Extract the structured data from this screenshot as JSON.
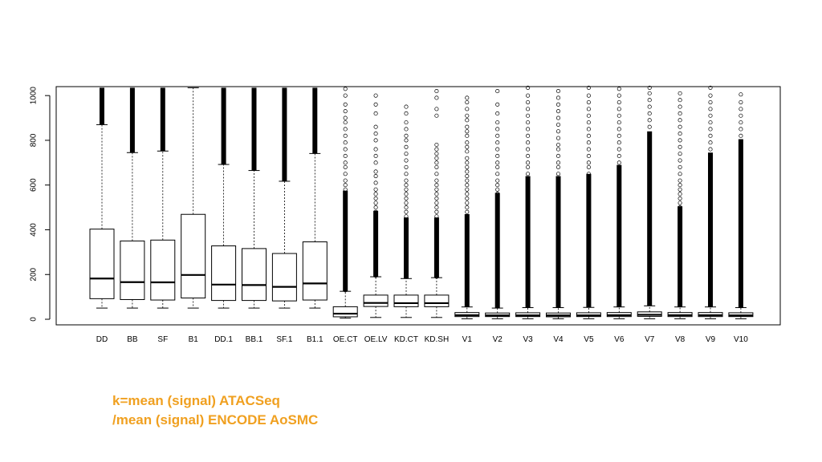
{
  "chart_data": {
    "type": "boxplot",
    "title": "",
    "xlabel": "",
    "ylabel": "",
    "ylim": [
      -25,
      1040
    ],
    "yticks": [
      0,
      200,
      400,
      600,
      800,
      1000
    ],
    "grid": false,
    "legend": "none",
    "colors": {
      "box_fill": "#ffffff",
      "stroke": "#000000"
    },
    "categories": [
      "DD",
      "BB",
      "SF",
      "B1",
      "DD.1",
      "BB.1",
      "SF.1",
      "B1.1",
      "OE.CT",
      "OE.LV",
      "KD.CT",
      "KD.SH",
      "V1",
      "V2",
      "V3",
      "V4",
      "V5",
      "V6",
      "V7",
      "V8",
      "V9",
      "V10"
    ],
    "boxes": [
      {
        "min": 50,
        "q1": 92,
        "median": 182,
        "q3": 403,
        "max": 870,
        "outliers_from": 870
      },
      {
        "min": 50,
        "q1": 88,
        "median": 166,
        "q3": 350,
        "max": 745,
        "outliers_from": 745
      },
      {
        "min": 50,
        "q1": 86,
        "median": 165,
        "q3": 354,
        "max": 752,
        "outliers_from": 752
      },
      {
        "min": 50,
        "q1": 95,
        "median": 198,
        "q3": 469,
        "max": 1035,
        "outliers_from": 1035
      },
      {
        "min": 50,
        "q1": 84,
        "median": 155,
        "q3": 328,
        "max": 692,
        "outliers_from": 692
      },
      {
        "min": 50,
        "q1": 84,
        "median": 153,
        "q3": 316,
        "max": 665,
        "outliers_from": 665
      },
      {
        "min": 50,
        "q1": 82,
        "median": 145,
        "q3": 294,
        "max": 617,
        "outliers_from": 617
      },
      {
        "min": 50,
        "q1": 86,
        "median": 160,
        "q3": 346,
        "max": 741,
        "outliers_from": 741
      },
      {
        "min": 5,
        "q1": 11,
        "median": 25,
        "q3": 56,
        "max": 125,
        "outliers_from": 125
      },
      {
        "min": 8,
        "q1": 57,
        "median": 73,
        "q3": 108,
        "max": 190,
        "outliers_from": 190
      },
      {
        "min": 8,
        "q1": 56,
        "median": 72,
        "q3": 108,
        "max": 182,
        "outliers_from": 182
      },
      {
        "min": 8,
        "q1": 56,
        "median": 72,
        "q3": 108,
        "max": 186,
        "outliers_from": 186
      },
      {
        "min": 2,
        "q1": 12,
        "median": 18,
        "q3": 30,
        "max": 55,
        "outliers_from": 55
      },
      {
        "min": 2,
        "q1": 12,
        "median": 17,
        "q3": 28,
        "max": 50,
        "outliers_from": 50
      },
      {
        "min": 2,
        "q1": 12,
        "median": 17,
        "q3": 29,
        "max": 52,
        "outliers_from": 52
      },
      {
        "min": 2,
        "q1": 11,
        "median": 17,
        "q3": 28,
        "max": 52,
        "outliers_from": 52
      },
      {
        "min": 2,
        "q1": 12,
        "median": 17,
        "q3": 29,
        "max": 53,
        "outliers_from": 53
      },
      {
        "min": 2,
        "q1": 12,
        "median": 18,
        "q3": 30,
        "max": 55,
        "outliers_from": 55
      },
      {
        "min": 2,
        "q1": 13,
        "median": 20,
        "q3": 33,
        "max": 60,
        "outliers_from": 60
      },
      {
        "min": 2,
        "q1": 12,
        "median": 18,
        "q3": 30,
        "max": 55,
        "outliers_from": 55
      },
      {
        "min": 2,
        "q1": 12,
        "median": 18,
        "q3": 30,
        "max": 55,
        "outliers_from": 55
      },
      {
        "min": 2,
        "q1": 12,
        "median": 17,
        "q3": 29,
        "max": 52,
        "outliers_from": 52
      }
    ],
    "outlier_points": [
      [],
      [],
      [],
      [],
      [],
      [],
      [],
      [],
      [
        1030,
        1000,
        960,
        930,
        900,
        880,
        850,
        820,
        790,
        760,
        730,
        700,
        680,
        650,
        620,
        600,
        580,
        560,
        540,
        520,
        500,
        480,
        460,
        440,
        420,
        400,
        380,
        360,
        340,
        320,
        300,
        280,
        260,
        240,
        220,
        200,
        180,
        160,
        150,
        140,
        130
      ],
      [
        1000,
        960,
        920,
        860,
        830,
        800,
        760,
        730,
        700,
        660,
        640,
        610,
        580,
        560,
        540,
        520,
        500,
        480,
        460,
        440,
        420,
        400,
        380,
        360,
        340,
        320,
        300,
        280,
        260,
        240,
        220,
        205,
        195
      ],
      [
        950,
        920,
        880,
        850,
        820,
        800,
        770,
        740,
        710,
        680,
        650,
        620,
        600,
        580,
        560,
        540,
        520,
        500,
        480,
        460,
        440,
        420,
        400,
        380,
        360,
        340,
        320,
        300,
        280,
        260,
        240,
        220,
        200,
        190
      ],
      [
        1020,
        990,
        940,
        910,
        780,
        760,
        740,
        720,
        700,
        680,
        650,
        620,
        600,
        580,
        560,
        540,
        520,
        500,
        480,
        460,
        440,
        420,
        400,
        380,
        360,
        340,
        320,
        300,
        280,
        260,
        240,
        220,
        200,
        190
      ],
      [
        990,
        970,
        940,
        910,
        890,
        860,
        840,
        820,
        790,
        770,
        750,
        720,
        700,
        680,
        660,
        640,
        620,
        600,
        580,
        560,
        540,
        520,
        500,
        480,
        460,
        440,
        420,
        400,
        380,
        360,
        340,
        320,
        300,
        280,
        260,
        240,
        220,
        200,
        180,
        160,
        140,
        120,
        100,
        80,
        65
      ],
      [
        1020,
        960,
        920,
        880,
        850,
        820,
        790,
        760,
        730,
        700,
        680,
        650,
        620,
        600,
        580,
        560,
        540,
        520,
        500,
        480,
        460,
        440,
        420,
        400,
        380,
        360,
        340,
        320,
        300,
        280,
        260,
        240,
        220,
        200,
        180,
        160,
        140,
        120,
        100,
        80,
        65
      ],
      [
        1035,
        1000,
        970,
        940,
        910,
        880,
        850,
        820,
        790,
        760,
        730,
        700,
        680,
        650,
        620,
        600,
        580,
        560,
        540,
        520,
        500,
        480,
        460,
        440,
        420,
        400,
        380,
        360,
        340,
        320,
        300,
        280,
        260,
        240,
        220,
        200,
        180,
        160,
        140,
        120,
        100,
        80,
        65
      ],
      [
        1020,
        990,
        960,
        930,
        900,
        870,
        840,
        810,
        780,
        760,
        730,
        700,
        680,
        650,
        620,
        600,
        580,
        560,
        540,
        520,
        500,
        480,
        460,
        440,
        420,
        400,
        380,
        360,
        340,
        320,
        300,
        280,
        260,
        240,
        220,
        200,
        180,
        160,
        140,
        120,
        100,
        80,
        65
      ],
      [
        1035,
        1000,
        970,
        940,
        910,
        880,
        850,
        820,
        790,
        760,
        730,
        700,
        680,
        650,
        620,
        600,
        580,
        560,
        540,
        520,
        500,
        480,
        460,
        440,
        420,
        400,
        380,
        360,
        340,
        320,
        300,
        280,
        260,
        240,
        220,
        200,
        180,
        160,
        140,
        120,
        100,
        80,
        65
      ],
      [
        1030,
        1000,
        970,
        940,
        910,
        880,
        850,
        820,
        790,
        760,
        730,
        700,
        680,
        650,
        620,
        600,
        580,
        560,
        540,
        520,
        500,
        480,
        460,
        440,
        420,
        400,
        380,
        360,
        340,
        320,
        300,
        280,
        260,
        240,
        220,
        200,
        180,
        160,
        140,
        120,
        100,
        80,
        65
      ],
      [
        1035,
        1010,
        980,
        950,
        920,
        890,
        860,
        830,
        800,
        770,
        740,
        710,
        690,
        660,
        630,
        600,
        580,
        560,
        540,
        520,
        500,
        480,
        460,
        440,
        420,
        400,
        380,
        360,
        340,
        320,
        300,
        280,
        260,
        240,
        220,
        200,
        180,
        160,
        140,
        120,
        100,
        80,
        70
      ],
      [
        1010,
        980,
        950,
        920,
        890,
        860,
        830,
        800,
        770,
        740,
        710,
        680,
        650,
        620,
        600,
        580,
        560,
        540,
        520,
        500,
        480,
        460,
        440,
        420,
        400,
        380,
        360,
        340,
        320,
        300,
        280,
        260,
        240,
        220,
        200,
        180,
        160,
        140,
        120,
        100,
        80,
        65
      ],
      [
        1035,
        1000,
        970,
        940,
        910,
        880,
        850,
        820,
        790,
        760,
        730,
        700,
        680,
        650,
        620,
        600,
        580,
        560,
        540,
        520,
        500,
        480,
        460,
        440,
        420,
        400,
        380,
        360,
        340,
        320,
        300,
        280,
        260,
        240,
        220,
        200,
        180,
        160,
        140,
        120,
        100,
        80,
        65
      ],
      [
        1005,
        970,
        940,
        910,
        880,
        850,
        820,
        790,
        760,
        730,
        700,
        680,
        650,
        620,
        600,
        580,
        560,
        540,
        520,
        500,
        480,
        460,
        440,
        420,
        400,
        380,
        360,
        340,
        320,
        300,
        280,
        260,
        240,
        220,
        200,
        180,
        160,
        140,
        120,
        100,
        80,
        65
      ]
    ],
    "dense_outlier_band_top": [
      1035,
      1035,
      1035,
      1035,
      1035,
      1035,
      1035,
      1035,
      575,
      485,
      455,
      455,
      470,
      565,
      640,
      640,
      650,
      690,
      840,
      505,
      745,
      805
    ]
  },
  "caption": {
    "line1": "k=mean (signal) ATACSeq",
    "line2": "/mean (signal) ENCODE AoSMC"
  }
}
